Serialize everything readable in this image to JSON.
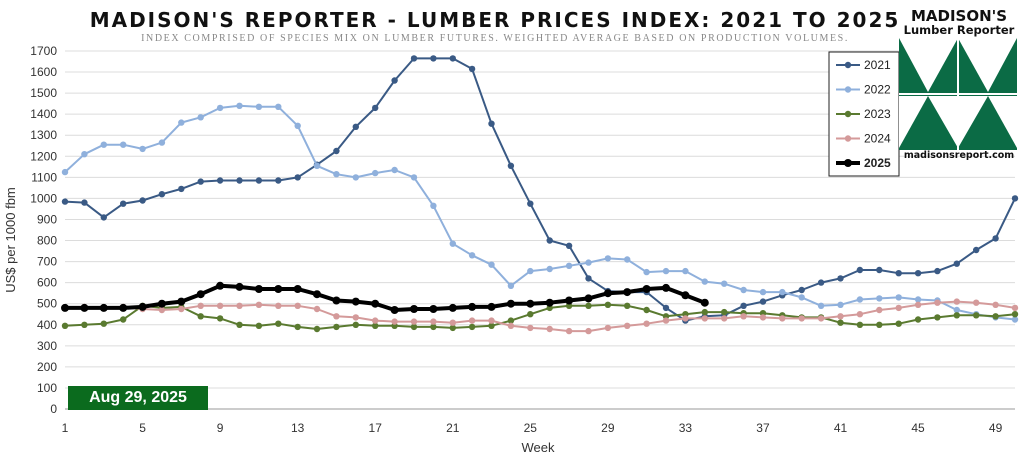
{
  "title": "MADISON'S REPORTER - LUMBER PRICES INDEX: 2021 TO 2025",
  "subtitle": "INDEX COMPRISED OF SPECIES MIX ON LUMBER FUTURES. WEIGHTED AVERAGE BASED ON PRODUCTION VOLUMES.",
  "logo": {
    "name": "MADISON'S",
    "subtitle": "Lumber Reporter",
    "url": "madisonsreport.com",
    "color": "#0b6b45"
  },
  "date_badge": "Aug 29, 2025",
  "chart_data": {
    "type": "line",
    "xlabel": "Week",
    "ylabel": "US$ per 1000 fbm",
    "ylim": [
      0,
      1700
    ],
    "xlim": [
      1,
      50
    ],
    "y_ticks": [
      0,
      100,
      200,
      300,
      400,
      500,
      600,
      700,
      800,
      900,
      1000,
      1100,
      1200,
      1300,
      1400,
      1500,
      1600,
      1700
    ],
    "x_ticks": [
      1,
      5,
      9,
      13,
      17,
      21,
      25,
      29,
      33,
      37,
      41,
      45,
      49
    ],
    "grid": true,
    "legend_position": "top-right",
    "series": [
      {
        "name": "2021",
        "color": "#3a5a85",
        "bold": false,
        "values": [
          985,
          980,
          910,
          975,
          990,
          1020,
          1045,
          1080,
          1085,
          1085,
          1085,
          1085,
          1100,
          1160,
          1225,
          1340,
          1430,
          1560,
          1665,
          1665,
          1665,
          1615,
          1355,
          1155,
          975,
          800,
          775,
          620,
          560,
          555,
          555,
          480,
          420,
          440,
          445,
          490,
          510,
          540,
          565,
          600,
          620,
          660,
          660,
          645,
          645,
          655,
          690,
          755,
          810,
          1000
        ]
      },
      {
        "name": "2022",
        "color": "#8fb0dc",
        "bold": false,
        "values": [
          1125,
          1210,
          1255,
          1255,
          1235,
          1265,
          1360,
          1385,
          1430,
          1440,
          1435,
          1435,
          1345,
          1155,
          1115,
          1100,
          1120,
          1135,
          1100,
          965,
          785,
          730,
          685,
          585,
          655,
          665,
          680,
          695,
          715,
          710,
          650,
          655,
          655,
          605,
          595,
          565,
          555,
          555,
          530,
          490,
          495,
          520,
          525,
          530,
          520,
          515,
          470,
          450,
          435,
          425
        ]
      },
      {
        "name": "2023",
        "color": "#5a7a30",
        "bold": false,
        "values": [
          395,
          400,
          405,
          425,
          490,
          480,
          485,
          440,
          430,
          400,
          395,
          405,
          390,
          380,
          390,
          400,
          395,
          395,
          390,
          390,
          385,
          390,
          395,
          420,
          450,
          480,
          490,
          490,
          495,
          490,
          470,
          440,
          450,
          460,
          460,
          455,
          455,
          445,
          435,
          435,
          410,
          400,
          400,
          405,
          425,
          435,
          445,
          445,
          440,
          450
        ]
      },
      {
        "name": "2024",
        "color": "#d49a9a",
        "bold": false,
        "values": [
          480,
          485,
          480,
          485,
          475,
          470,
          475,
          490,
          490,
          490,
          495,
          490,
          490,
          475,
          440,
          435,
          420,
          415,
          415,
          415,
          410,
          420,
          420,
          395,
          385,
          380,
          370,
          370,
          385,
          395,
          405,
          420,
          430,
          430,
          430,
          440,
          435,
          430,
          430,
          430,
          440,
          450,
          470,
          480,
          495,
          505,
          510,
          505,
          495,
          480
        ]
      },
      {
        "name": "2025",
        "color": "#000000",
        "bold": true,
        "values": [
          480,
          480,
          480,
          480,
          485,
          500,
          510,
          545,
          585,
          580,
          570,
          570,
          570,
          545,
          515,
          510,
          500,
          470,
          475,
          475,
          480,
          485,
          485,
          500,
          500,
          505,
          515,
          525,
          550,
          555,
          570,
          575,
          540,
          505
        ]
      }
    ]
  }
}
